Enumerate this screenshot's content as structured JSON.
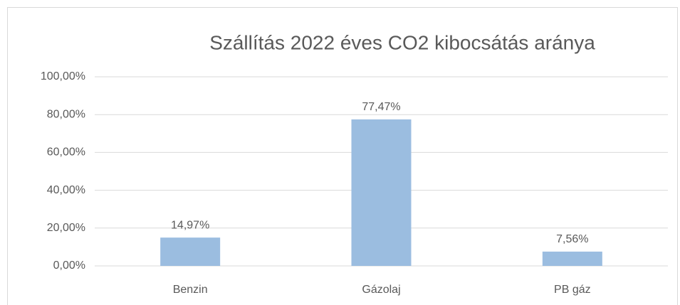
{
  "chart_data": {
    "type": "bar",
    "title": "Szállítás 2022 éves CO2 kibocsátás aránya",
    "categories": [
      "Benzin",
      "Gázolaj",
      "PB gáz"
    ],
    "values": [
      14.97,
      77.47,
      7.56
    ],
    "value_labels": [
      "14,97%",
      "77,47%",
      "7,56%"
    ],
    "color": "#9bbde0",
    "ylim": [
      0,
      100
    ],
    "yticks": [
      {
        "value": 0,
        "label": "0,00%"
      },
      {
        "value": 20,
        "label": "20,00%"
      },
      {
        "value": 40,
        "label": "40,00%"
      },
      {
        "value": 60,
        "label": "60,00%"
      },
      {
        "value": 80,
        "label": "80,00%"
      },
      {
        "value": 100,
        "label": "100,00%"
      }
    ],
    "grid": true
  }
}
